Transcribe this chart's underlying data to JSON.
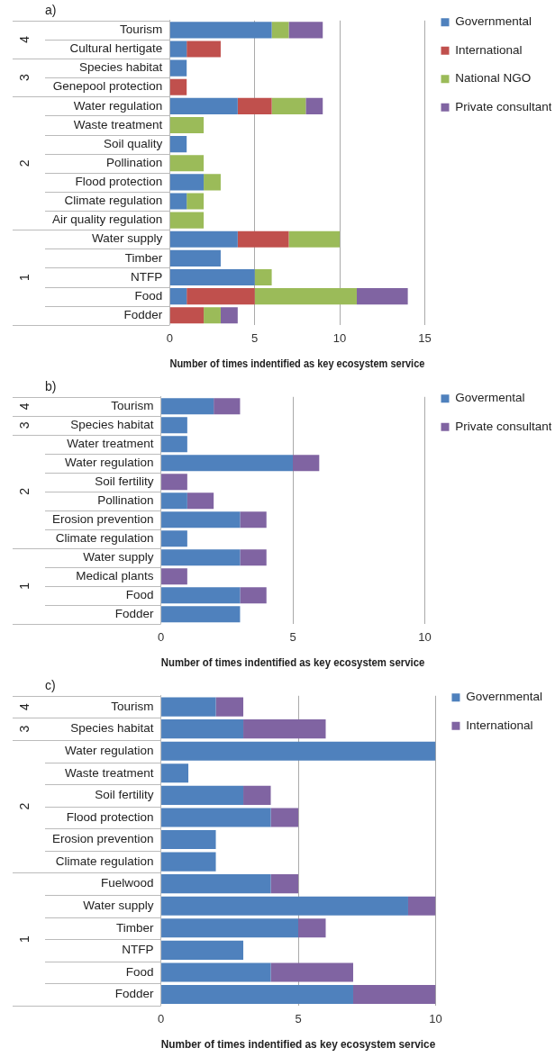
{
  "chart_data": [
    {
      "type": "bar",
      "title": "a)",
      "orientation": "horizontal",
      "stacked": true,
      "xlabel": "Number of times indentified as key ecosystem service",
      "categories": [
        "Tourism",
        "Cultural hertigate",
        "Species habitat",
        "Genepool protection",
        "Water regulation",
        "Waste treatment",
        "Soil quality",
        "Pollination",
        "Flood protection",
        "Climate regulation",
        "Air quality regulation",
        "Water supply",
        "Timber",
        "NTFP",
        "Food",
        "Fodder"
      ],
      "series": [
        {
          "name": "Governmental",
          "color": "#4f81bd",
          "values": [
            6,
            1,
            1,
            0,
            4,
            0,
            1,
            0,
            2,
            1,
            0,
            4,
            3,
            5,
            1,
            0
          ]
        },
        {
          "name": "International",
          "color": "#c0504d",
          "values": [
            0,
            2,
            0,
            1,
            2,
            0,
            0,
            0,
            0,
            0,
            0,
            3,
            0,
            0,
            4,
            2
          ]
        },
        {
          "name": "National NGO",
          "color": "#9bbb59",
          "values": [
            1,
            0,
            0,
            0,
            2,
            2,
            0,
            2,
            1,
            1,
            2,
            3,
            0,
            1,
            6,
            1
          ]
        },
        {
          "name": "Private consultant",
          "color": "#8064a2",
          "values": [
            2,
            0,
            0,
            0,
            1,
            0,
            0,
            0,
            0,
            0,
            0,
            0,
            0,
            0,
            3,
            1
          ]
        }
      ],
      "xlim": [
        0,
        15
      ],
      "xticks": [
        0,
        5,
        10,
        15
      ],
      "grid": "x",
      "legend": "top right",
      "annotations": [
        "4",
        "3",
        "2",
        "1"
      ]
    },
    {
      "type": "bar",
      "title": "b)",
      "orientation": "horizontal",
      "stacked": true,
      "xlabel": "Number of times indentified as key ecosystem service",
      "categories": [
        "Tourism",
        "Species habitat",
        "Water treatment",
        "Water regulation",
        "Soil fertility",
        "Pollination",
        "Erosion prevention",
        "Climate regulation",
        "Water supply",
        "Medical plants",
        "Food",
        "Fodder"
      ],
      "series": [
        {
          "name": "Govermental",
          "color": "#4f81bd",
          "values": [
            2,
            1,
            1,
            5,
            0,
            1,
            3,
            1,
            3,
            0,
            3,
            3
          ]
        },
        {
          "name": "Private consultant",
          "color": "#8064a2",
          "values": [
            1,
            0,
            0,
            1,
            1,
            1,
            1,
            0,
            1,
            1,
            1,
            0
          ]
        }
      ],
      "xlim": [
        0,
        10
      ],
      "xticks": [
        0,
        5,
        10
      ],
      "grid": "x",
      "legend": "top right",
      "annotations": [
        "4",
        "3",
        "2",
        "1"
      ]
    },
    {
      "type": "bar",
      "title": "c)",
      "orientation": "horizontal",
      "stacked": true,
      "xlabel": "Number of times indentified as key ecosystem service",
      "categories": [
        "Tourism",
        "Species habitat",
        "Water regulation",
        "Waste treatment",
        "Soil fertility",
        "Flood protection",
        "Erosion prevention",
        "Climate regulation",
        "Fuelwood",
        "Water supply",
        "Timber",
        "NTFP",
        "Food",
        "Fodder"
      ],
      "series": [
        {
          "name": "Governmental",
          "color": "#4f81bd",
          "values": [
            2,
            3,
            10,
            1,
            3,
            4,
            2,
            2,
            4,
            9,
            5,
            3,
            4,
            7
          ]
        },
        {
          "name": "International",
          "color": "#8064a2",
          "values": [
            1,
            3,
            0,
            0,
            1,
            1,
            0,
            0,
            1,
            1,
            1,
            0,
            3,
            3
          ]
        }
      ],
      "xlim": [
        0,
        10
      ],
      "xticks": [
        0,
        5,
        10
      ],
      "grid": "x",
      "legend": "top right",
      "annotations": [
        "4",
        "3",
        "2",
        "1"
      ]
    }
  ]
}
